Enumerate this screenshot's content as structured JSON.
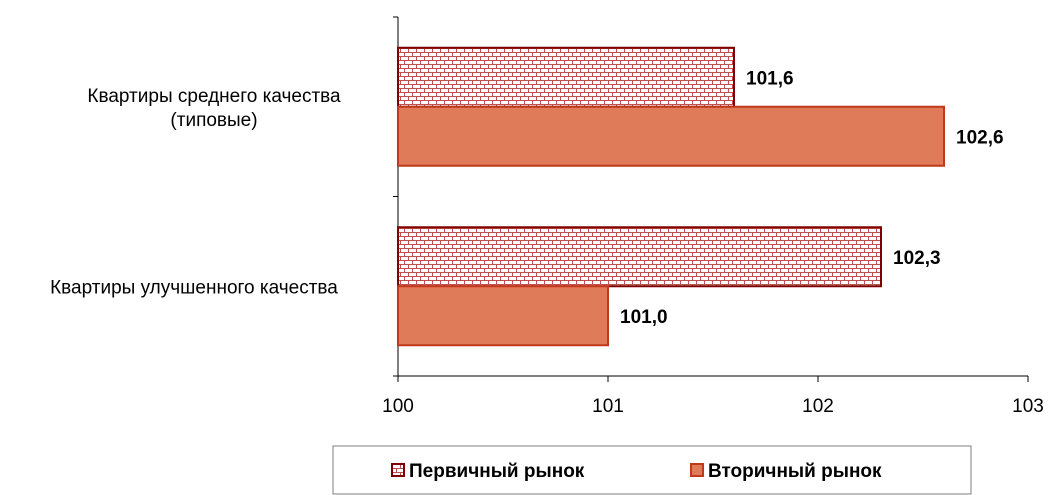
{
  "chart_data": {
    "type": "bar",
    "orientation": "horizontal",
    "categories": [
      [
        "Квартиры среднего качества",
        "(типовые)"
      ],
      [
        "Квартиры улучшенного качества"
      ]
    ],
    "series": [
      {
        "name": "Первичный рынок",
        "values": [
          101.6,
          102.3
        ],
        "labels": [
          "101,6",
          "102,3"
        ],
        "fill": "#ffffff",
        "pattern_color": "#c0504d",
        "stroke": "#7f0000",
        "pattern": "brick"
      },
      {
        "name": "Вторичный рынок",
        "values": [
          102.6,
          101.0
        ],
        "labels": [
          "102,6",
          "101,0"
        ],
        "fill": "#e07b5a",
        "stroke": "#c0391b",
        "pattern": "solid"
      }
    ],
    "xlim": [
      100,
      103
    ],
    "xticks": [
      "100",
      "101",
      "102",
      "103"
    ],
    "xlabel": "",
    "ylabel": "",
    "title": "",
    "grid": false,
    "legend": "bottom"
  }
}
